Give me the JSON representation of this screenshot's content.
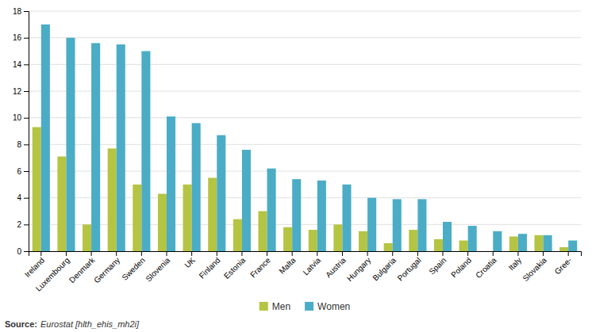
{
  "chart_data": {
    "type": "bar",
    "categories": [
      "Ireland",
      "Luxembourg",
      "Denmark",
      "Germany",
      "Sweden",
      "Slovenia",
      "UK",
      "Finland",
      "Estonia",
      "France",
      "Malta",
      "Latvia",
      "Austria",
      "Hungary",
      "Bulgaria",
      "Portugal",
      "Spain",
      "Poland",
      "Croatia",
      "Italy",
      "Slovakia",
      "Gree-"
    ],
    "series": [
      {
        "name": "Men",
        "color": "#b5c442",
        "values": [
          9.3,
          7.1,
          2.0,
          7.7,
          5.0,
          4.3,
          5.0,
          5.5,
          2.4,
          3.0,
          1.8,
          1.6,
          2.0,
          1.5,
          0.6,
          1.6,
          0.9,
          0.8,
          0.0,
          1.1,
          1.2,
          0.3
        ]
      },
      {
        "name": "Women",
        "color": "#4bacc6",
        "values": [
          17.0,
          16.0,
          15.6,
          15.5,
          15.0,
          10.1,
          9.6,
          8.7,
          7.6,
          6.2,
          5.4,
          5.3,
          5.0,
          4.0,
          3.9,
          3.9,
          2.2,
          1.9,
          1.5,
          1.3,
          1.2,
          0.8
        ]
      }
    ],
    "ylim": [
      0,
      18
    ],
    "yticks": [
      0,
      2,
      4,
      6,
      8,
      10,
      12,
      14,
      16,
      18
    ],
    "grid": true,
    "legend": "bottom",
    "annotations": [
      "Source:",
      "Eurostat [hlth_ehis_mh2i]"
    ]
  }
}
